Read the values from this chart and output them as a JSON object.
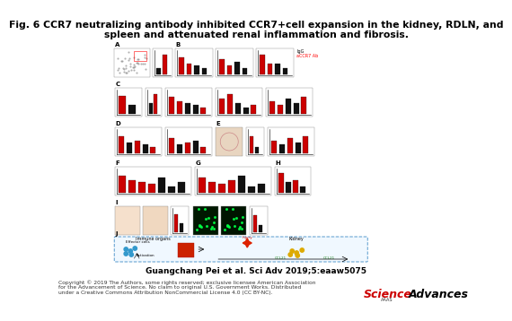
{
  "title_line1": "Fig. 6 CCR7 neutralizing antibody inhibited CCR7+cell expansion in the kidney, RDLN, and",
  "title_line2": "spleen and attenuated renal inflammation and fibrosis.",
  "title_fontsize": 7.8,
  "title_fontweight": "bold",
  "author_line": "Guangchang Pei et al. Sci Adv 2019;5:eaaw5075",
  "author_fontsize": 6.5,
  "copyright_text": "Copyright © 2019 The Authors, some rights reserved; exclusive licensee American Association\nfor the Advancement of Science. No claim to original U.S. Government Works. Distributed\nunder a Creative Commons Attribution NonCommercial License 4.0 (CC BY-NC).",
  "copyright_fontsize": 4.3,
  "journal_science": "Science",
  "journal_advances": "Advances",
  "journal_color_science": "#CC0000",
  "journal_color_advances": "#000000",
  "journal_fontsize": 9,
  "bg_color": "#ffffff",
  "content_bg": "#ffffff",
  "bar_red": "#cc0000",
  "bar_black": "#111111",
  "bar_white": "#ffffff"
}
